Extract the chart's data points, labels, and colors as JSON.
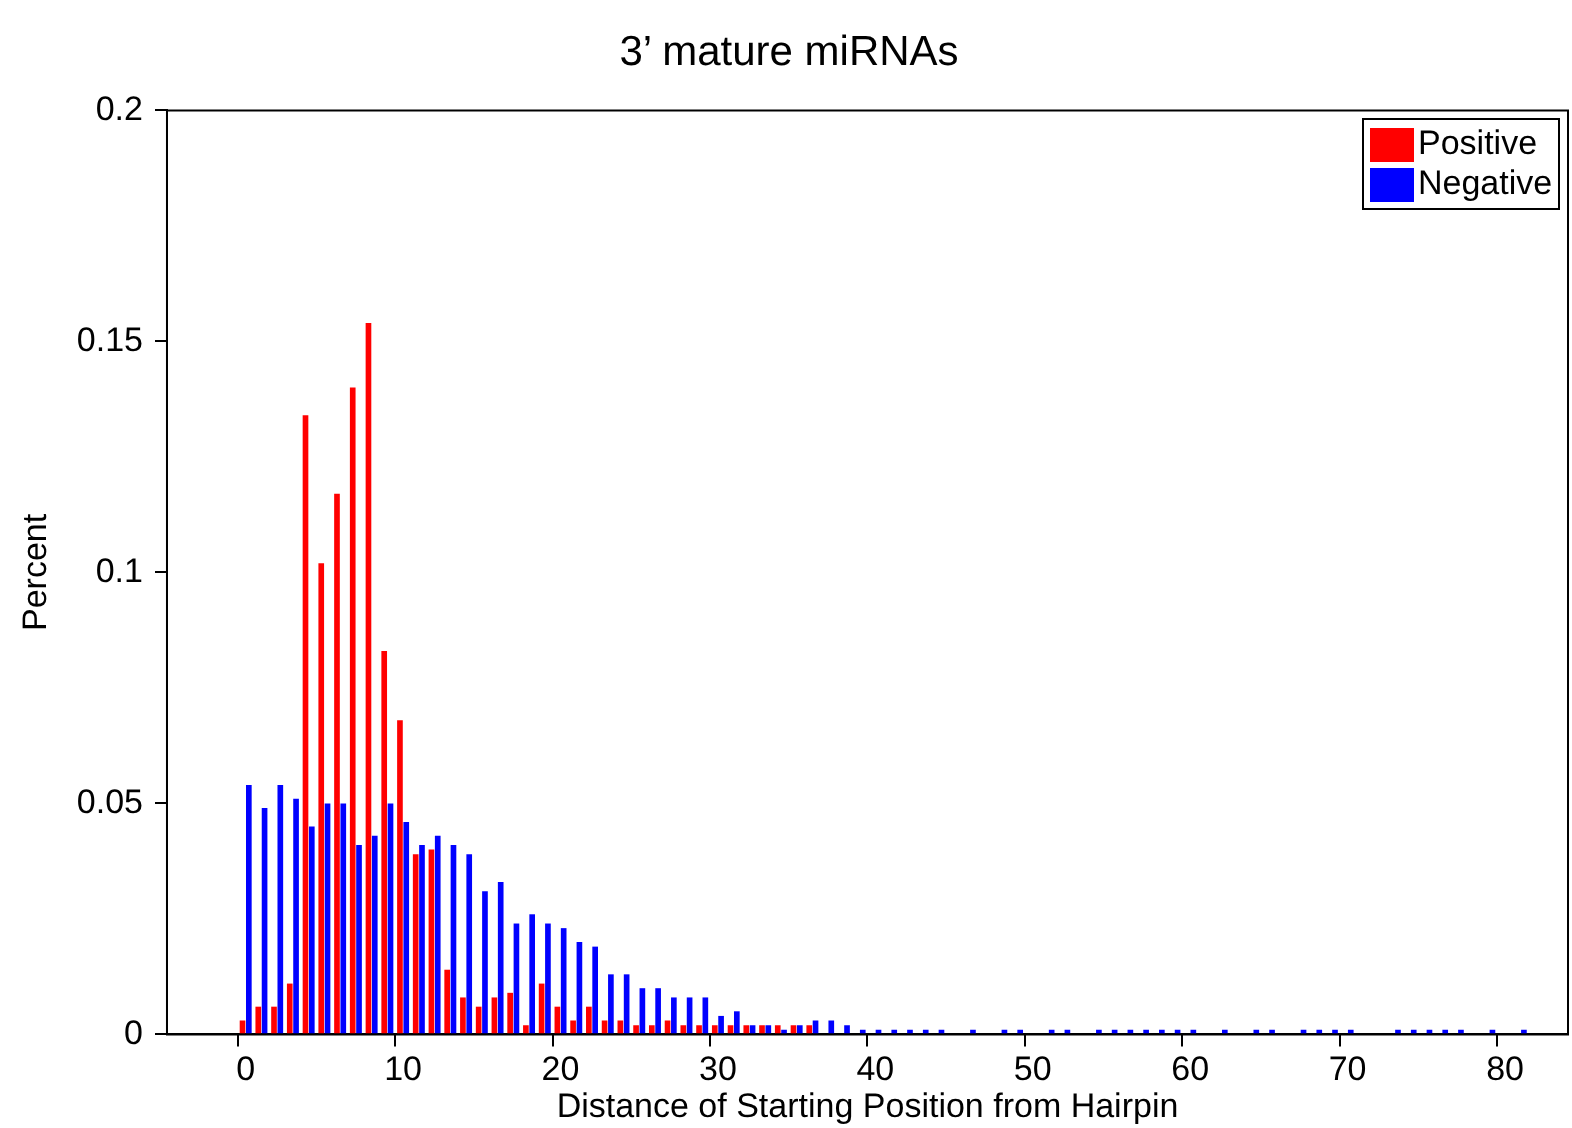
{
  "chart_data": {
    "type": "bar",
    "title": "3’ mature miRNAs",
    "xlabel": "Distance of Starting Position from Hairpin",
    "ylabel": "Percent",
    "categories": [
      null,
      null,
      null,
      null,
      null,
      "0",
      null,
      null,
      null,
      null,
      null,
      null,
      null,
      null,
      null,
      "10",
      null,
      null,
      null,
      null,
      null,
      null,
      null,
      null,
      null,
      "20",
      null,
      null,
      null,
      null,
      null,
      null,
      null,
      null,
      null,
      "30",
      null,
      null,
      null,
      null,
      null,
      null,
      null,
      null,
      null,
      "40",
      null,
      null,
      null,
      null,
      null,
      null,
      null,
      null,
      null,
      "50",
      null,
      null,
      null,
      null,
      null,
      null,
      null,
      null,
      null,
      "60",
      null,
      null,
      null,
      null,
      null,
      null,
      null,
      null,
      null,
      "70",
      null,
      null,
      null,
      null,
      null,
      null,
      null,
      null,
      null,
      "80",
      null,
      null,
      null,
      null
    ],
    "series": [
      {
        "name": "Positive",
        "color": "#ff0000",
        "values": [
          null,
          null,
          null,
          null,
          null,
          0.003,
          0.006,
          0.006,
          0.011,
          0.134,
          0.102,
          0.117,
          0.14,
          0.154,
          0.083,
          0.068,
          0.039,
          0.04,
          0.014,
          0.008,
          0.006,
          0.008,
          0.009,
          0.002,
          0.011,
          0.006,
          0.003,
          0.006,
          0.003,
          0.003,
          0.002,
          0.002,
          0.003,
          0.002,
          0.002,
          0.002,
          0.002,
          0.002,
          0.002,
          0.002,
          0.002,
          0.002,
          0,
          0,
          0,
          0,
          0,
          0,
          0,
          0,
          0,
          0,
          0,
          0,
          0,
          0,
          0,
          0,
          0,
          0,
          0,
          0,
          0,
          0,
          0,
          0,
          0,
          0,
          0,
          0,
          0,
          0,
          0,
          0,
          0,
          0,
          0,
          0,
          0,
          0,
          0,
          0,
          0,
          0,
          0,
          0,
          0,
          null,
          null,
          null
        ]
      },
      {
        "name": "Negative",
        "color": "#0000ff",
        "values": [
          null,
          null,
          null,
          null,
          null,
          0.054,
          0.049,
          0.054,
          0.051,
          0.045,
          0.05,
          0.05,
          0.041,
          0.043,
          0.05,
          0.046,
          0.041,
          0.043,
          0.041,
          0.039,
          0.031,
          0.033,
          0.024,
          0.026,
          0.024,
          0.023,
          0.02,
          0.019,
          0.013,
          0.013,
          0.01,
          0.01,
          0.008,
          0.008,
          0.008,
          0.004,
          0.005,
          0.002,
          0.002,
          0.001,
          0.002,
          0.003,
          0.003,
          0.002,
          0.001,
          0.001,
          0.001,
          0.001,
          0.001,
          0.001,
          0,
          0.001,
          0,
          0.001,
          0.001,
          0,
          0.001,
          0.001,
          0,
          0.001,
          0.001,
          0.001,
          0.001,
          0.001,
          0.001,
          0.001,
          0,
          0.001,
          0,
          0.001,
          0.001,
          0,
          0.001,
          0.001,
          0.001,
          0.001,
          0,
          0,
          0.001,
          0.001,
          0.001,
          0.001,
          0.001,
          0,
          0.001,
          0,
          0.001,
          null,
          null,
          null
        ]
      }
    ],
    "ylim": [
      0,
      0.2
    ],
    "yticks": [
      0,
      0.05,
      0.1,
      0.15,
      0.2
    ],
    "grid": false,
    "legend": "top right"
  }
}
